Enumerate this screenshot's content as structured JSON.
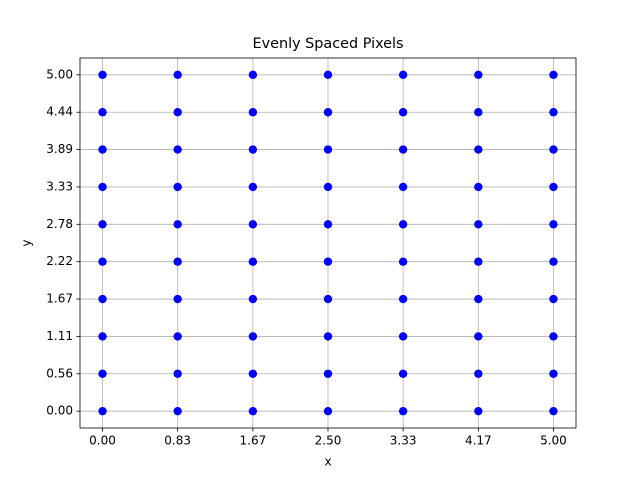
{
  "chart_data": {
    "type": "scatter",
    "title": "Evenly Spaced Pixels",
    "x_label": "x",
    "y_label": "y",
    "color": "blue",
    "grid": true,
    "xlim": [
      -0.25,
      5.25
    ],
    "ylim": [
      -0.25,
      5.25
    ],
    "xticks": [
      {
        "value": 0,
        "label": "0.00"
      },
      {
        "value": 0.833,
        "label": "0.83"
      },
      {
        "value": 1.667,
        "label": "1.67"
      },
      {
        "value": 2.5,
        "label": "2.50"
      },
      {
        "value": 3.333,
        "label": "3.33"
      },
      {
        "value": 4.167,
        "label": "4.17"
      },
      {
        "value": 5,
        "label": "5.00"
      }
    ],
    "yticks": [
      {
        "value": 0,
        "label": "0.00"
      },
      {
        "value": 0.556,
        "label": "0.56"
      },
      {
        "value": 1.111,
        "label": "1.11"
      },
      {
        "value": 1.667,
        "label": "1.67"
      },
      {
        "value": 2.222,
        "label": "2.22"
      },
      {
        "value": 2.778,
        "label": "2.78"
      },
      {
        "value": 3.333,
        "label": "3.33"
      },
      {
        "value": 3.889,
        "label": "3.89"
      },
      {
        "value": 4.444,
        "label": "4.44"
      },
      {
        "value": 5,
        "label": "5.00"
      }
    ],
    "x": [
      0,
      0,
      0,
      0,
      0,
      0,
      0,
      0,
      0,
      0,
      0.833,
      0.833,
      0.833,
      0.833,
      0.833,
      0.833,
      0.833,
      0.833,
      0.833,
      0.833,
      1.667,
      1.667,
      1.667,
      1.667,
      1.667,
      1.667,
      1.667,
      1.667,
      1.667,
      1.667,
      2.5,
      2.5,
      2.5,
      2.5,
      2.5,
      2.5,
      2.5,
      2.5,
      2.5,
      2.5,
      3.333,
      3.333,
      3.333,
      3.333,
      3.333,
      3.333,
      3.333,
      3.333,
      3.333,
      3.333,
      4.167,
      4.167,
      4.167,
      4.167,
      4.167,
      4.167,
      4.167,
      4.167,
      4.167,
      4.167,
      5,
      5,
      5,
      5,
      5,
      5,
      5,
      5,
      5,
      5
    ],
    "y": [
      0,
      0.556,
      1.111,
      1.667,
      2.222,
      2.778,
      3.333,
      3.889,
      4.444,
      5,
      0,
      0.556,
      1.111,
      1.667,
      2.222,
      2.778,
      3.333,
      3.889,
      4.444,
      5,
      0,
      0.556,
      1.111,
      1.667,
      2.222,
      2.778,
      3.333,
      3.889,
      4.444,
      5,
      0,
      0.556,
      1.111,
      1.667,
      2.222,
      2.778,
      3.333,
      3.889,
      4.444,
      5,
      0,
      0.556,
      1.111,
      1.667,
      2.222,
      2.778,
      3.333,
      3.889,
      4.444,
      5,
      0,
      0.556,
      1.111,
      1.667,
      2.222,
      2.778,
      3.333,
      3.889,
      4.444,
      5,
      0,
      0.556,
      1.111,
      1.667,
      2.222,
      2.778,
      3.333,
      3.889,
      4.444,
      5
    ]
  }
}
